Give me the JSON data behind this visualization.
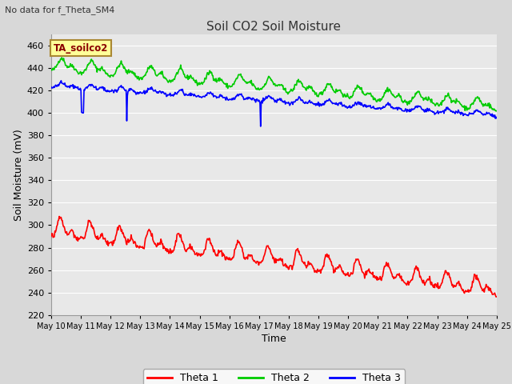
{
  "title": "Soil CO2 Soil Moisture",
  "no_data_text": "No data for f_Theta_SM4",
  "xlabel": "Time",
  "ylabel": "Soil Moisture (mV)",
  "ylim": [
    220,
    470
  ],
  "yticks": [
    220,
    240,
    260,
    280,
    300,
    320,
    340,
    360,
    380,
    400,
    420,
    440,
    460
  ],
  "legend_labels": [
    "Theta 1",
    "Theta 2",
    "Theta 3"
  ],
  "legend_colors": [
    "#ff0000",
    "#00cc00",
    "#0000ff"
  ],
  "annotation_box_text": "TA_soilco2",
  "annotation_box_color": "#ffff99",
  "annotation_box_edge": "#aa8833",
  "plot_bg_color": "#e8e8e8",
  "fig_bg_color": "#d8d8d8",
  "grid_color": "#ffffff",
  "title_color": "#333333",
  "x_labels": [
    "May 10",
    "May 11",
    "May 12",
    "May 13",
    "May 14",
    "May 15",
    "May 16",
    "May 17",
    "May 18",
    "May 19",
    "May 20",
    "May 21",
    "May 22",
    "May 23",
    "May 24",
    "May 25"
  ],
  "theta1_color": "#ff0000",
  "theta2_color": "#00cc00",
  "theta3_color": "#0000ff",
  "line_width": 1.2,
  "n_days": 15,
  "pts_per_day": 48
}
